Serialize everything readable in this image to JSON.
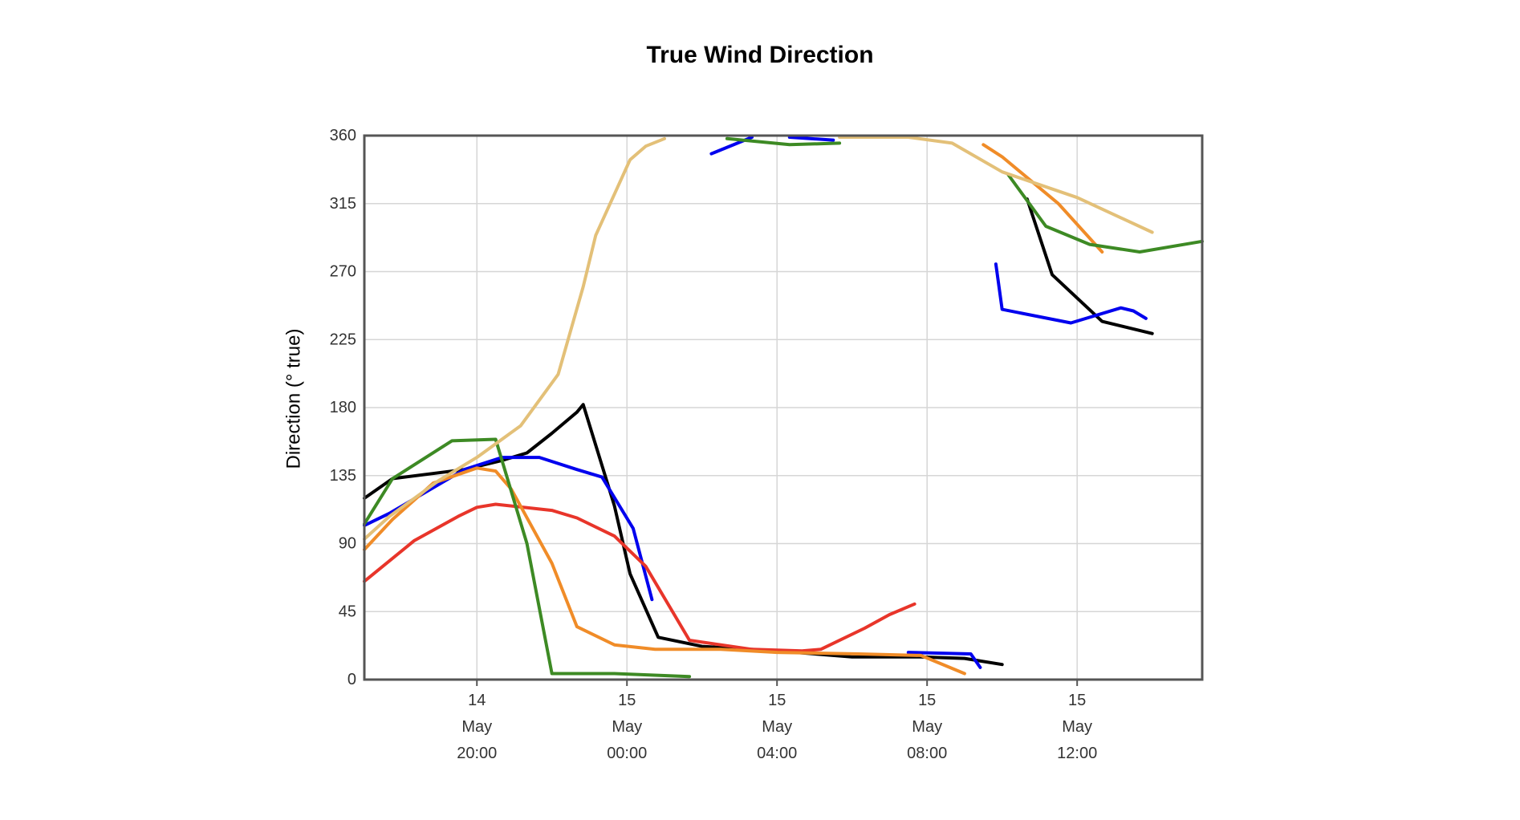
{
  "chart_data": {
    "type": "line",
    "title": "True Wind Direction",
    "xlabel": "",
    "ylabel": "Direction (° true)",
    "ylim": [
      0,
      360
    ],
    "xlim": [
      "2024-05-14T17:00",
      "2024-05-15T15:20"
    ],
    "grid": true,
    "legend": "none",
    "y_ticks": [
      0,
      45,
      90,
      135,
      180,
      225,
      270,
      315,
      360
    ],
    "x_ticks": [
      {
        "t": "2024-05-14T20:00",
        "lines": [
          "14",
          "May",
          "20:00"
        ]
      },
      {
        "t": "2024-05-15T00:00",
        "lines": [
          "15",
          "May",
          "00:00"
        ]
      },
      {
        "t": "2024-05-15T04:00",
        "lines": [
          "15",
          "May",
          "04:00"
        ]
      },
      {
        "t": "2024-05-15T08:00",
        "lines": [
          "15",
          "May",
          "08:00"
        ]
      },
      {
        "t": "2024-05-15T12:00",
        "lines": [
          "15",
          "May",
          "12:00"
        ]
      }
    ],
    "series": [
      {
        "color": "#000000",
        "segments": [
          [
            [
              "2024-05-14T17:00",
              120
            ],
            [
              "2024-05-14T17:45",
              133
            ],
            [
              "2024-05-14T19:40",
              139
            ],
            [
              "2024-05-14T20:40",
              145
            ],
            [
              "2024-05-14T21:20",
              150
            ],
            [
              "2024-05-14T22:00",
              163
            ],
            [
              "2024-05-14T22:40",
              177
            ],
            [
              "2024-05-14T22:50",
              182
            ],
            [
              "2024-05-14T23:40",
              115
            ],
            [
              "2024-05-15T00:05",
              70
            ],
            [
              "2024-05-15T00:50",
              28
            ],
            [
              "2024-05-15T02:00",
              22
            ],
            [
              "2024-05-15T04:00",
              19
            ],
            [
              "2024-05-15T06:00",
              15
            ],
            [
              "2024-05-15T07:50",
              15
            ],
            [
              "2024-05-15T09:00",
              14
            ],
            [
              "2024-05-15T10:00",
              10
            ]
          ],
          [
            [
              "2024-05-15T10:40",
              318
            ],
            [
              "2024-05-15T11:20",
              268
            ],
            [
              "2024-05-15T12:40",
              237
            ],
            [
              "2024-05-15T14:00",
              229
            ]
          ]
        ]
      },
      {
        "color": "#0000ee",
        "segments": [
          [
            [
              "2024-05-14T17:00",
              102
            ],
            [
              "2024-05-14T17:40",
              110
            ],
            [
              "2024-05-14T19:40",
              139
            ],
            [
              "2024-05-14T20:40",
              147
            ],
            [
              "2024-05-14T21:40",
              147
            ],
            [
              "2024-05-14T22:40",
              139
            ],
            [
              "2024-05-14T23:20",
              134
            ],
            [
              "2024-05-15T00:10",
              100
            ],
            [
              "2024-05-15T00:40",
              53
            ]
          ],
          [
            [
              "2024-05-15T02:15",
              348
            ],
            [
              "2024-05-15T03:20",
              360
            ]
          ],
          [
            [
              "2024-05-15T04:20",
              360
            ],
            [
              "2024-05-15T05:30",
              357
            ]
          ],
          [
            [
              "2024-05-15T07:30",
              18
            ],
            [
              "2024-05-15T09:10",
              17
            ],
            [
              "2024-05-15T09:25",
              8
            ]
          ],
          [
            [
              "2024-05-15T09:50",
              275
            ],
            [
              "2024-05-15T10:00",
              245
            ],
            [
              "2024-05-15T11:50",
              236
            ],
            [
              "2024-05-15T13:10",
              246
            ],
            [
              "2024-05-15T13:30",
              244
            ],
            [
              "2024-05-15T13:50",
              239
            ]
          ]
        ]
      },
      {
        "color": "#e8352a",
        "segments": [
          [
            [
              "2024-05-14T17:00",
              65
            ],
            [
              "2024-05-14T18:20",
              92
            ],
            [
              "2024-05-14T19:30",
              108
            ],
            [
              "2024-05-14T20:00",
              114
            ],
            [
              "2024-05-14T20:30",
              116
            ],
            [
              "2024-05-14T22:00",
              112
            ],
            [
              "2024-05-14T22:40",
              107
            ],
            [
              "2024-05-14T23:40",
              95
            ],
            [
              "2024-05-15T00:30",
              75
            ],
            [
              "2024-05-15T01:40",
              26
            ],
            [
              "2024-05-15T03:20",
              20
            ],
            [
              "2024-05-15T04:40",
              19
            ],
            [
              "2024-05-15T05:10",
              20
            ],
            [
              "2024-05-15T06:20",
              34
            ],
            [
              "2024-05-15T07:00",
              43
            ],
            [
              "2024-05-15T07:40",
              50
            ]
          ]
        ]
      },
      {
        "color": "#f08c28",
        "segments": [
          [
            [
              "2024-05-14T17:00",
              86
            ],
            [
              "2024-05-14T17:45",
              106
            ],
            [
              "2024-05-14T18:50",
              130
            ],
            [
              "2024-05-14T20:00",
              140
            ],
            [
              "2024-05-14T20:30",
              138
            ],
            [
              "2024-05-14T20:55",
              126
            ],
            [
              "2024-05-14T22:00",
              77
            ],
            [
              "2024-05-14T22:40",
              35
            ],
            [
              "2024-05-14T23:40",
              23
            ],
            [
              "2024-05-15T00:45",
              20
            ],
            [
              "2024-05-15T02:30",
              20
            ],
            [
              "2024-05-15T04:00",
              18
            ],
            [
              "2024-05-15T06:10",
              17
            ],
            [
              "2024-05-15T07:50",
              16
            ],
            [
              "2024-05-15T09:00",
              4
            ]
          ],
          [
            [
              "2024-05-15T09:30",
              354
            ],
            [
              "2024-05-15T10:00",
              346
            ],
            [
              "2024-05-15T11:30",
              315
            ],
            [
              "2024-05-15T12:40",
              283
            ]
          ]
        ]
      },
      {
        "color": "#3d8a24",
        "segments": [
          [
            [
              "2024-05-14T17:00",
              103
            ],
            [
              "2024-05-14T17:45",
              133
            ],
            [
              "2024-05-14T19:20",
              158
            ],
            [
              "2024-05-14T20:30",
              159
            ],
            [
              "2024-05-14T21:20",
              90
            ],
            [
              "2024-05-14T22:00",
              4
            ],
            [
              "2024-05-14T23:40",
              4
            ],
            [
              "2024-05-15T01:40",
              2
            ]
          ],
          [
            [
              "2024-05-15T02:40",
              358
            ],
            [
              "2024-05-15T04:20",
              354
            ],
            [
              "2024-05-15T05:40",
              355
            ]
          ],
          [
            [
              "2024-05-15T10:10",
              334
            ],
            [
              "2024-05-15T11:10",
              300
            ],
            [
              "2024-05-15T12:20",
              288
            ],
            [
              "2024-05-15T13:40",
              283
            ],
            [
              "2024-05-15T15:20",
              290
            ]
          ]
        ]
      },
      {
        "color": "#e3c078",
        "segments": [
          [
            [
              "2024-05-14T17:00",
              93
            ],
            [
              "2024-05-14T17:40",
              108
            ],
            [
              "2024-05-14T19:00",
              132
            ],
            [
              "2024-05-14T20:00",
              147
            ],
            [
              "2024-05-14T21:10",
              168
            ],
            [
              "2024-05-14T22:10",
              202
            ],
            [
              "2024-05-14T22:50",
              260
            ],
            [
              "2024-05-14T23:10",
              294
            ],
            [
              "2024-05-15T00:05",
              344
            ],
            [
              "2024-05-15T00:30",
              353
            ],
            [
              "2024-05-15T01:00",
              358
            ]
          ],
          [
            [
              "2024-05-15T05:40",
              360
            ],
            [
              "2024-05-15T07:30",
              361
            ],
            [
              "2024-05-15T08:40",
              355
            ],
            [
              "2024-05-15T10:00",
              336
            ],
            [
              "2024-05-15T12:00",
              319
            ],
            [
              "2024-05-15T14:00",
              296
            ]
          ]
        ]
      }
    ]
  }
}
